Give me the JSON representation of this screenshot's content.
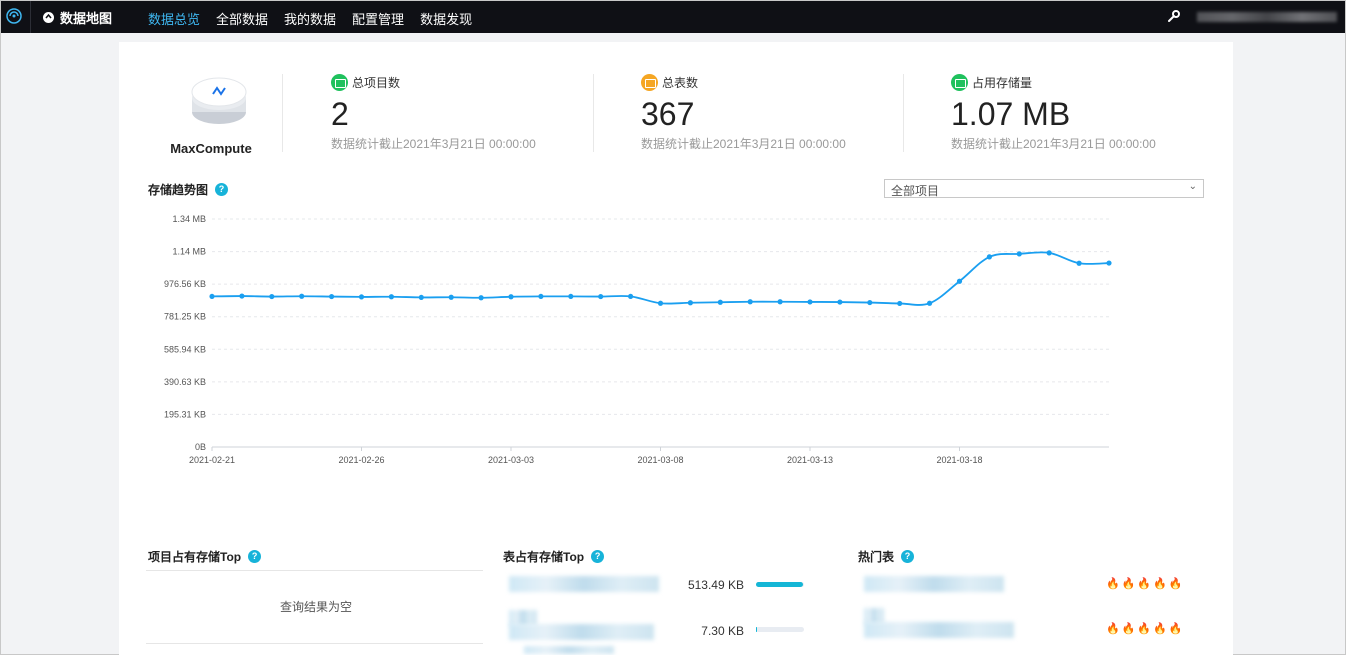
{
  "topbar": {
    "brand": "数据地图",
    "nav": [
      "数据总览",
      "全部数据",
      "我的数据",
      "配置管理",
      "数据发现"
    ],
    "active_index": 0
  },
  "product": {
    "name": "MaxCompute"
  },
  "stats": [
    {
      "label": "总项目数",
      "value": "2",
      "note": "数据统计截止2021年3月21日 00:00:00",
      "color": "#1fc15d"
    },
    {
      "label": "总表数",
      "value": "367",
      "note": "数据统计截止2021年3月21日 00:00:00",
      "color": "#f5a623"
    },
    {
      "label": "占用存储量",
      "value": "1.07 MB",
      "note": "数据统计截止2021年3月21日 00:00:00",
      "color": "#1fc15d"
    }
  ],
  "trend": {
    "title": "存储趋势图",
    "filter": "全部项目"
  },
  "chart_data": {
    "type": "line",
    "title": "存储趋势图",
    "y_ticks": [
      "0B",
      "195.31 KB",
      "390.63 KB",
      "585.94 KB",
      "781.25 KB",
      "976.56 KB",
      "1.14 MB",
      "1.34 MB"
    ],
    "x_ticks": [
      "2021-02-21",
      "2021-02-26",
      "2021-03-03",
      "2021-03-08",
      "2021-03-13",
      "2021-03-18"
    ],
    "ylim_kb": [
      0,
      1367.19
    ],
    "x_start": "2021-02-21",
    "x_end": "2021-03-24",
    "series": [
      {
        "values_kb": [
          903,
          905,
          902,
          904,
          902,
          900,
          901,
          897,
          898,
          895,
          901,
          903,
          903,
          902,
          903,
          862,
          865,
          868,
          871,
          871,
          870,
          869,
          866,
          861,
          862,
          994,
          1140,
          1158,
          1164,
          1102,
          1103
        ]
      }
    ],
    "color": "#1a9ff0",
    "grid": true
  },
  "bottom": {
    "project_top": {
      "title": "项目占有存储Top",
      "empty": "查询结果为空"
    },
    "table_top": {
      "title": "表占有存储Top",
      "rows": [
        {
          "size": "513.49 KB",
          "fraction": 0.985
        },
        {
          "size": "7.30 KB",
          "fraction": 0.02
        }
      ]
    },
    "hot": {
      "title": "热门表",
      "rows": [
        {
          "fires": "🔥🔥🔥🔥🔥"
        },
        {
          "fires": "🔥🔥🔥🔥🔥"
        }
      ]
    }
  }
}
